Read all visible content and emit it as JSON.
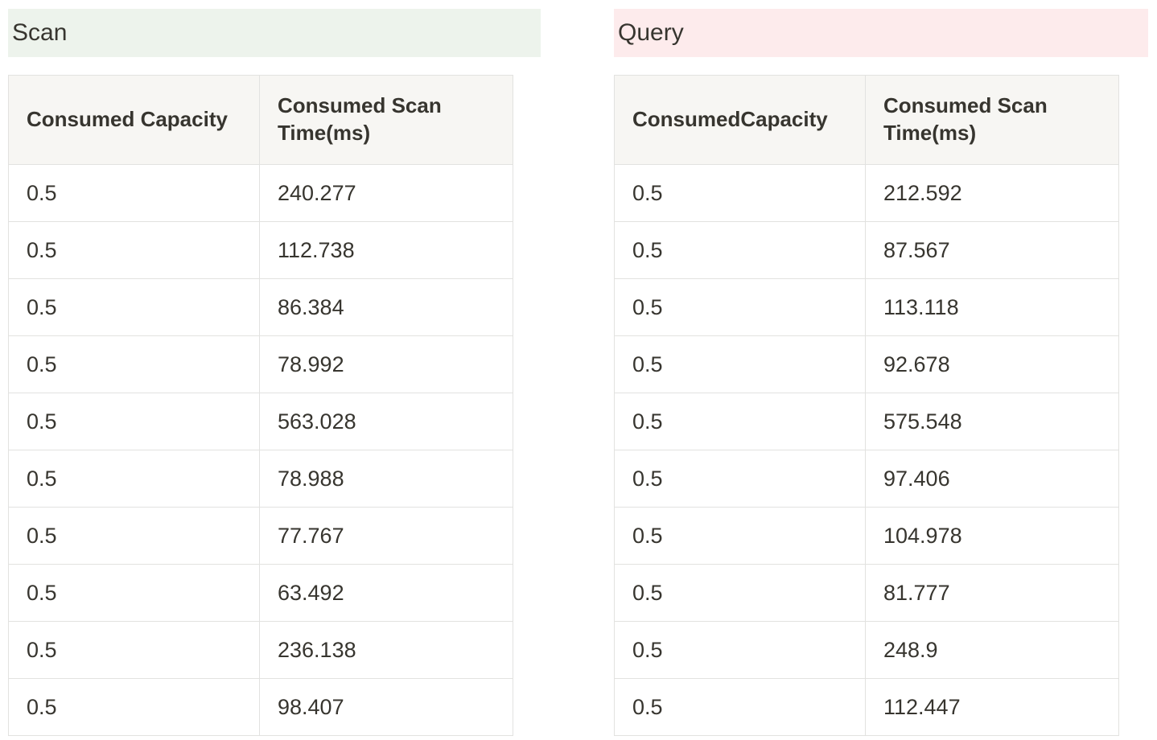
{
  "colors": {
    "scan_highlight": "#edf3ec",
    "query_highlight": "#fdebec",
    "table_header_bg": "#f7f6f3",
    "text": "#37352f",
    "border": "#e2e2e0"
  },
  "sections": {
    "scan": {
      "title": "Scan",
      "highlight_color": "#edf3ec",
      "table": {
        "headers": [
          "Consumed Capacity",
          "Consumed Scan Time(ms)"
        ],
        "rows": [
          [
            "0.5",
            "240.277"
          ],
          [
            "0.5",
            "112.738"
          ],
          [
            "0.5",
            "86.384"
          ],
          [
            "0.5",
            "78.992"
          ],
          [
            "0.5",
            "563.028"
          ],
          [
            "0.5",
            "78.988"
          ],
          [
            "0.5",
            "77.767"
          ],
          [
            "0.5",
            "63.492"
          ],
          [
            "0.5",
            "236.138"
          ],
          [
            "0.5",
            "98.407"
          ]
        ]
      }
    },
    "query": {
      "title": "Query",
      "highlight_color": "#fdebec",
      "table": {
        "headers": [
          "ConsumedCapacity",
          "Consumed Scan Time(ms)"
        ],
        "rows": [
          [
            "0.5",
            "212.592"
          ],
          [
            "0.5",
            "87.567"
          ],
          [
            "0.5",
            "113.118"
          ],
          [
            "0.5",
            "92.678"
          ],
          [
            "0.5",
            "575.548"
          ],
          [
            "0.5",
            "97.406"
          ],
          [
            "0.5",
            "104.978"
          ],
          [
            "0.5",
            "81.777"
          ],
          [
            "0.5",
            "248.9"
          ],
          [
            "0.5",
            "112.447"
          ]
        ]
      }
    }
  }
}
